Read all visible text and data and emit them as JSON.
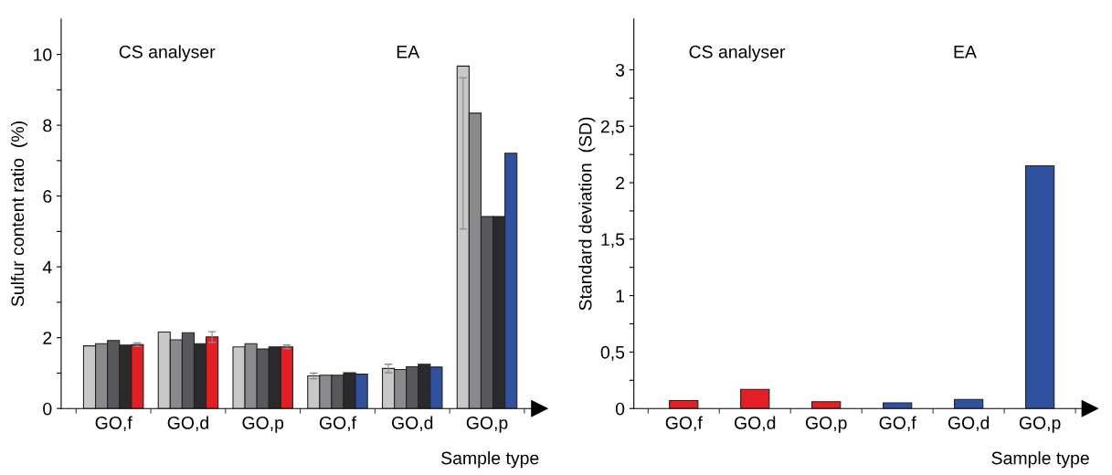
{
  "chart_data": [
    {
      "type": "bar",
      "ylabel": "Sulfur content ratio  (%)",
      "xlabel": "Sample type",
      "categories": [
        "GO,f",
        "GO,d",
        "GO,p",
        "GO,f",
        "GO,d",
        "GO,p"
      ],
      "series": [
        {
          "color": "#c8c8c8",
          "values": [
            1.77,
            2.16,
            1.74,
            0.92,
            1.13,
            9.67
          ],
          "errors": [
            null,
            null,
            null,
            0.08,
            0.12,
            [
              5.07,
              9.34
            ]
          ]
        },
        {
          "color": "#8a8a8c",
          "values": [
            1.83,
            1.94,
            1.83,
            0.94,
            1.1,
            8.34
          ]
        },
        {
          "color": "#58585a",
          "values": [
            1.92,
            2.14,
            1.68,
            0.94,
            1.18,
            5.42
          ]
        },
        {
          "color": "#2a2a2c",
          "values": [
            1.79,
            1.83,
            1.74,
            1.01,
            1.25,
            5.42
          ]
        },
        {
          "colors": [
            "#e31e24",
            "#e31e24",
            "#e31e24",
            "#3050a0",
            "#3050a0",
            "#3050a0"
          ],
          "values": [
            1.8,
            2.02,
            1.74,
            0.97,
            1.17,
            7.21
          ],
          "errors": [
            0.05,
            0.15,
            0.05,
            null,
            null,
            null
          ]
        }
      ],
      "ylim": [
        0,
        11
      ],
      "yticks": [
        0,
        {
          "value": 1,
          "label": null
        },
        2,
        {
          "value": 3,
          "label": null
        },
        4,
        {
          "value": 5,
          "label": null
        },
        6,
        {
          "value": 7,
          "label": null
        },
        8,
        {
          "value": 9,
          "label": null
        },
        10
      ],
      "annotations": [
        "CS analyser",
        "EA"
      ],
      "grid": false,
      "legend": false
    },
    {
      "type": "bar",
      "ylabel": "Standard deviation  (SD)",
      "xlabel": "Sample type",
      "categories": [
        "GO,f",
        "GO,d",
        "GO,p",
        "GO,f",
        "GO,d",
        "GO,p"
      ],
      "values": [
        0.07,
        0.17,
        0.06,
        0.05,
        0.08,
        2.15
      ],
      "colors": [
        "#e31e24",
        "#e31e24",
        "#e31e24",
        "#3050a0",
        "#3050a0",
        "#3050a0"
      ],
      "ylim": [
        0,
        3.45
      ],
      "yticks": [
        0,
        {
          "value": 0.25,
          "label": null
        },
        {
          "value": 0.5,
          "label": "0,5"
        },
        {
          "value": 0.75,
          "label": null
        },
        1,
        {
          "value": 1.25,
          "label": null
        },
        {
          "value": 1.5,
          "label": "1,5"
        },
        {
          "value": 1.75,
          "label": null
        },
        2,
        {
          "value": 2.25,
          "label": null
        },
        {
          "value": 2.5,
          "label": "2,5"
        },
        {
          "value": 2.75,
          "label": null
        },
        3
      ],
      "annotations": [
        "CS analyser",
        "EA"
      ],
      "grid": false,
      "legend": false
    }
  ]
}
